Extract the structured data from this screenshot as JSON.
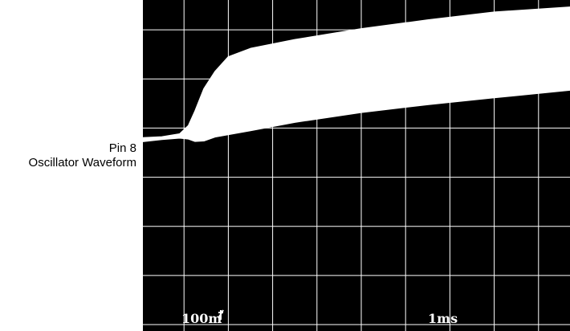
{
  "annotation": {
    "pin": "Pin 8",
    "signal": "Oscillator Waveform"
  },
  "readouts": {
    "vertical_scale": "100m",
    "horizontal_scale": "1ms"
  },
  "colors": {
    "screen_background": "#000000",
    "trace": "#ffffff",
    "graticule": "#ffffff"
  },
  "chart_data": {
    "type": "area",
    "title": "",
    "xlabel": "",
    "ylabel": "",
    "x_divisions": 10,
    "y_divisions": 7,
    "units": "divisions",
    "grid": true,
    "xlim": [
      0,
      10
    ],
    "ylim": [
      0,
      7
    ],
    "envelope": {
      "upper": [
        [
          0,
          3.8
        ],
        [
          0.5,
          3.82
        ],
        [
          0.9,
          3.88
        ],
        [
          1.1,
          4.05
        ],
        [
          1.25,
          4.35
        ],
        [
          1.45,
          4.8
        ],
        [
          1.7,
          5.15
        ],
        [
          2.0,
          5.45
        ],
        [
          2.5,
          5.62
        ],
        [
          3.5,
          5.8
        ],
        [
          5.0,
          6.02
        ],
        [
          6.5,
          6.2
        ],
        [
          8.0,
          6.36
        ],
        [
          10.0,
          6.48
        ]
      ],
      "lower": [
        [
          0,
          3.72
        ],
        [
          0.5,
          3.77
        ],
        [
          0.9,
          3.8
        ],
        [
          1.1,
          3.78
        ],
        [
          1.25,
          3.73
        ],
        [
          1.45,
          3.74
        ],
        [
          1.7,
          3.82
        ],
        [
          2.5,
          3.95
        ],
        [
          3.5,
          4.12
        ],
        [
          5.0,
          4.32
        ],
        [
          6.5,
          4.48
        ],
        [
          8.0,
          4.62
        ],
        [
          10.0,
          4.8
        ]
      ]
    }
  }
}
